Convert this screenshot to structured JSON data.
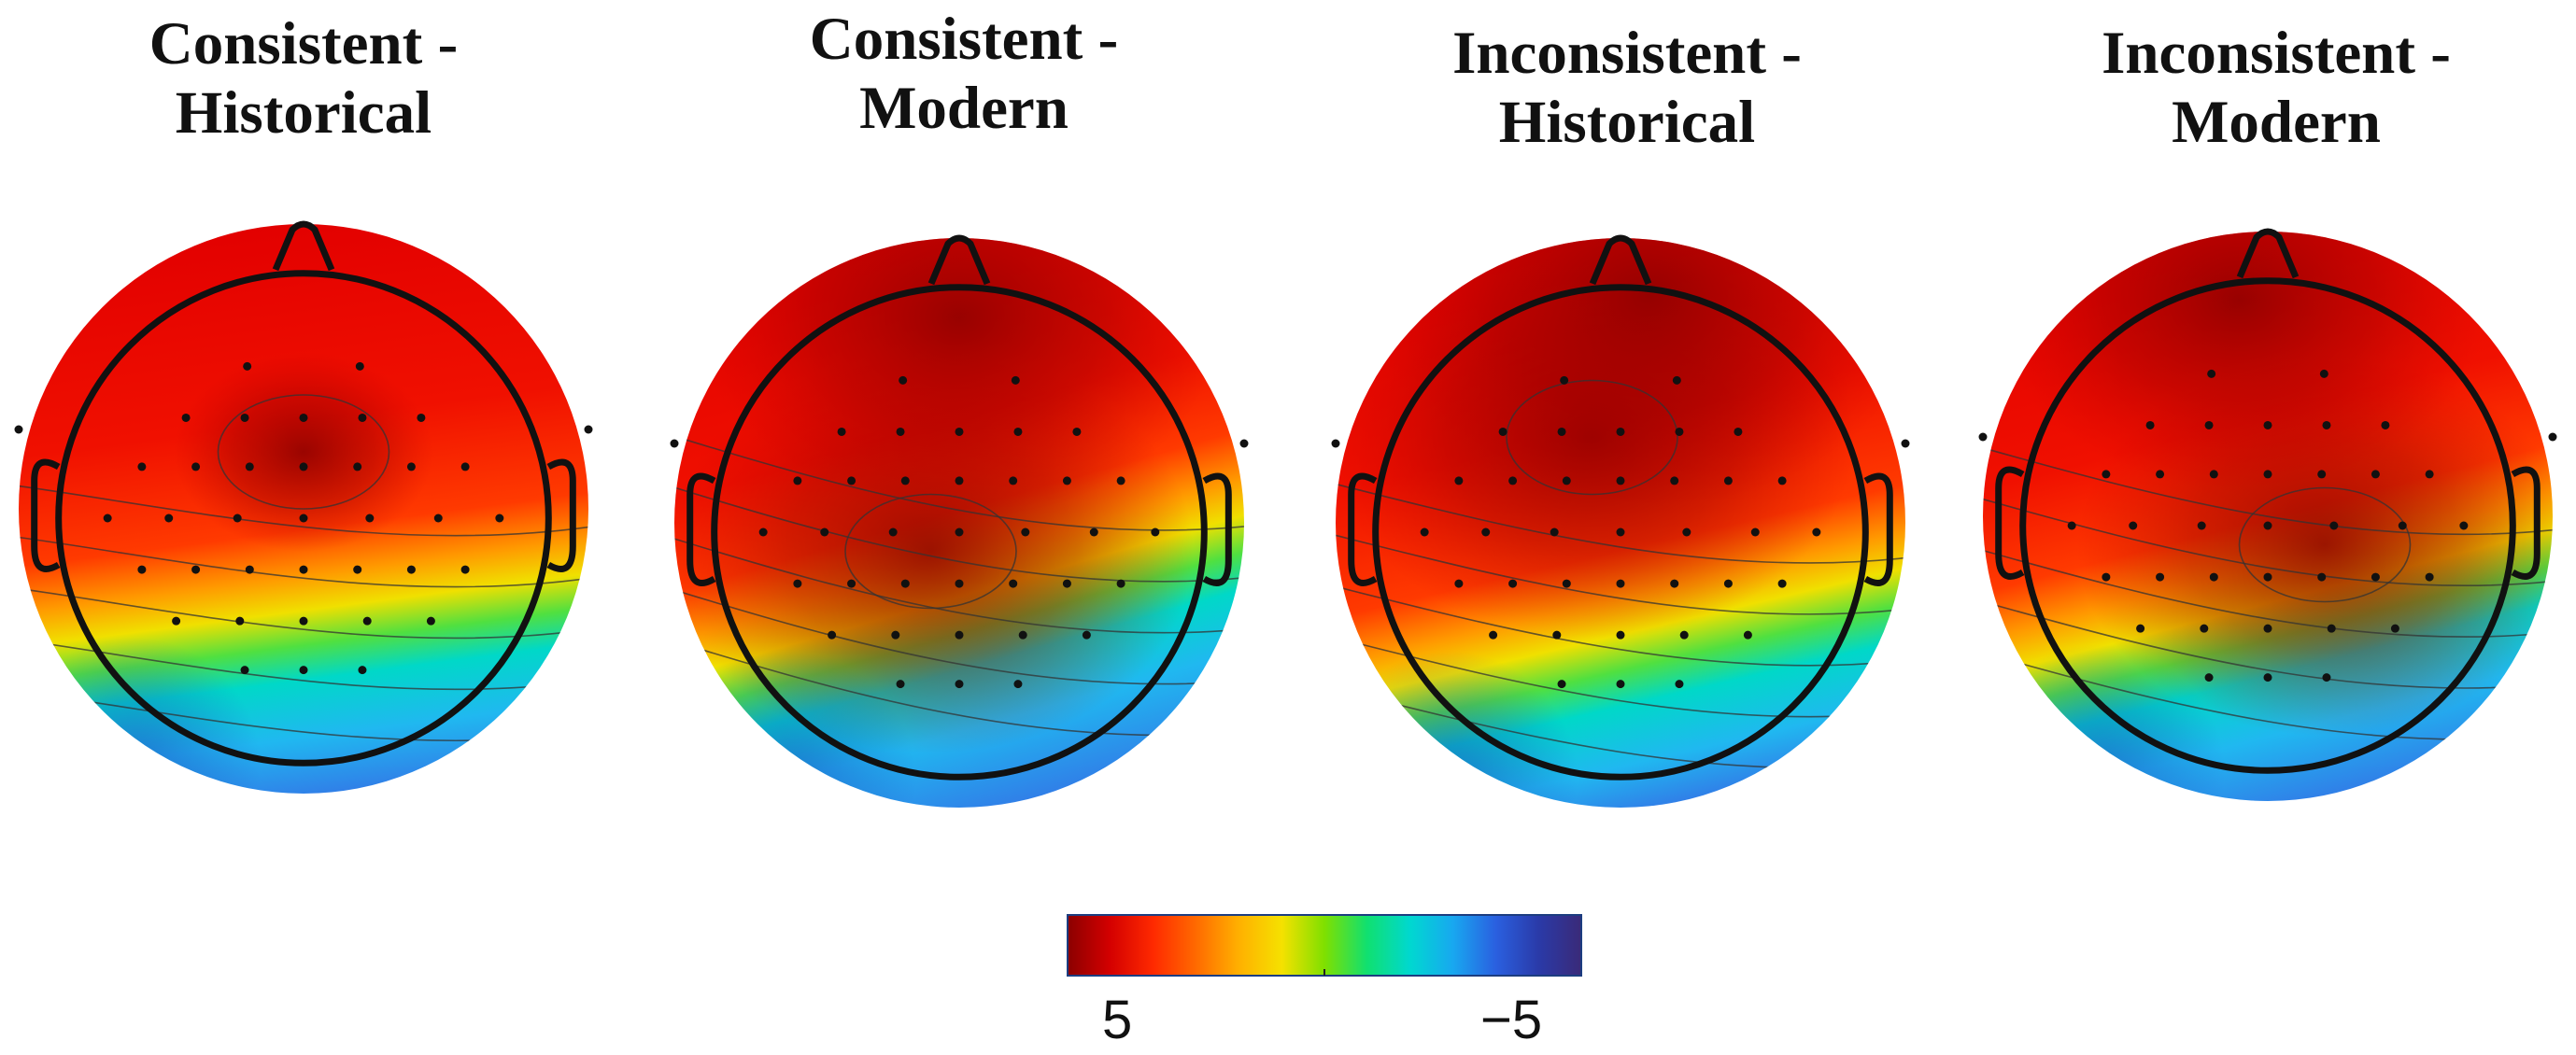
{
  "panels": [
    {
      "title_line1": "Consistent -",
      "title_line2": "Historical",
      "hot": [
        [
          0.5,
          0.4,
          0.0
        ]
      ],
      "blue_top": 0.7,
      "blue_tilt": 0.1
    },
    {
      "title_line1": "Consistent -",
      "title_line2": "Modern",
      "hot": [
        [
          0.45,
          0.55,
          0.9
        ],
        [
          0.5,
          0.14,
          0.9
        ]
      ],
      "blue_top": 0.66,
      "blue_tilt": 0.22
    },
    {
      "title_line1": "Inconsistent -",
      "title_line2": "Historical",
      "hot": [
        [
          0.45,
          0.35,
          0.9
        ],
        [
          0.55,
          0.1,
          1.0
        ]
      ],
      "blue_top": 0.72,
      "blue_tilt": 0.18
    },
    {
      "title_line1": "Inconsistent -",
      "title_line2": "Modern",
      "hot": [
        [
          0.6,
          0.55,
          0.8
        ],
        [
          0.45,
          0.12,
          0.8
        ]
      ],
      "blue_top": 0.68,
      "blue_tilt": 0.2
    }
  ],
  "colorbar": {
    "label_left": "5",
    "label_right": "−5",
    "colors": [
      "#8b0000",
      "#d40000",
      "#ff2a00",
      "#ff6a00",
      "#ffb000",
      "#f5e100",
      "#7fe000",
      "#10e070",
      "#00d8d0",
      "#18a8f0",
      "#2a60e0",
      "#2a3aa8",
      "#3a2a78"
    ]
  }
}
